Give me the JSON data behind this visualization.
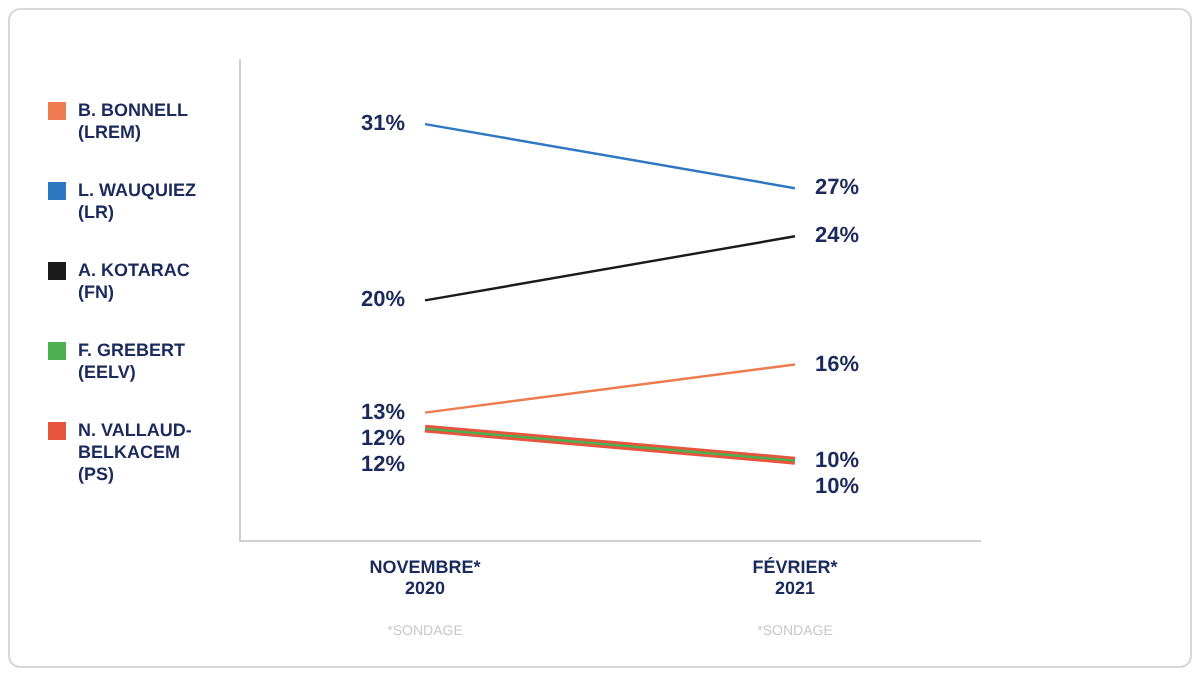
{
  "chart_data": {
    "type": "line",
    "categories": [
      "NOVEMBRE* 2020",
      "FÉVRIER* 2021"
    ],
    "series": [
      {
        "name": "B. BONNELL (LREM)",
        "color": "#ee7b4f",
        "values": [
          13,
          16
        ],
        "value_labels": [
          "13%",
          "16%"
        ]
      },
      {
        "name": "L. WAUQUIEZ (LR)",
        "color": "#2e78c2",
        "values": [
          31,
          27
        ],
        "value_labels": [
          "31%",
          "27%"
        ]
      },
      {
        "name": "A. KOTARAC (FN)",
        "color": "#1a1a1a",
        "values": [
          20,
          24
        ],
        "value_labels": [
          "20%",
          "24%"
        ]
      },
      {
        "name": "F. GREBERT (EELV)",
        "color": "#4caf50",
        "values": [
          12,
          10
        ],
        "value_labels": [
          "12%",
          "10%"
        ]
      },
      {
        "name": "N. VALLAUD-BELKACEM (PS)",
        "color": "#e8553e",
        "values": [
          12,
          10
        ],
        "value_labels": [
          "12%",
          "10%"
        ]
      }
    ],
    "tick_labels": "x",
    "legend": "left",
    "marker": "none",
    "line_style": "solid",
    "annotations": [
      "*SONDAGE",
      "*SONDAGE"
    ]
  }
}
